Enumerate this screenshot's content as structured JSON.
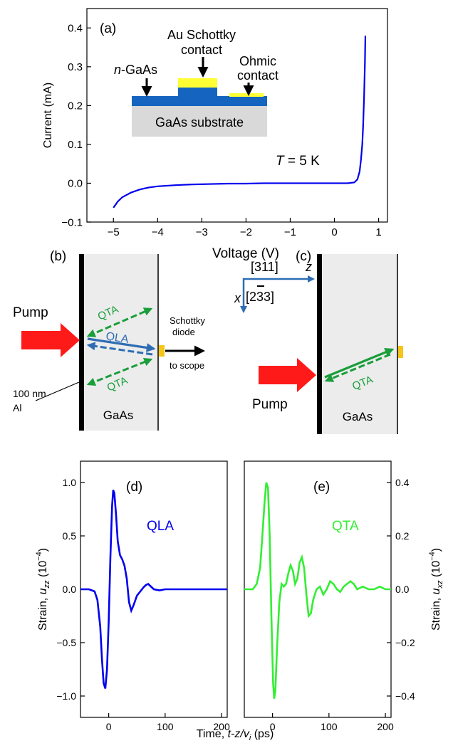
{
  "figure": {
    "panel_a": {
      "label": "(a)",
      "temperature_var": "T",
      "temperature_rest": " = 5 K",
      "inset": {
        "au_label_line1": "Au Schottky",
        "au_label_line2": "contact",
        "ngaas_prefix": "n",
        "ngaas_rest": "-GaAs",
        "ohmic_line1": "Ohmic",
        "ohmic_line2": "contact",
        "substrate": "GaAs substrate"
      }
    },
    "panel_b": {
      "label": "(b)",
      "pump": "Pump",
      "qta": "QTA",
      "qla": "QLA",
      "schottky_line1": "Schottky",
      "schottky_line2": "diode",
      "to_scope": "to scope",
      "al_line1": "100 nm",
      "al_line2": "Al",
      "gaas": "GaAs"
    },
    "panel_c": {
      "label": "(c)",
      "dir_311": "[311]",
      "dir_233": "[233]",
      "axis_z": "z",
      "axis_x": "x",
      "pump": "Pump",
      "qta": "QTA",
      "gaas": "GaAs"
    },
    "panel_d": {
      "label": "(d)",
      "mode": "QLA",
      "ylabel_main": "Strain, ",
      "ylabel_var": "u",
      "ylabel_sub": "zz",
      "ylabel_unit": " (10",
      "ylabel_exp": "−4",
      "ylabel_close": ")"
    },
    "panel_e": {
      "label": "(e)",
      "mode": "QTA",
      "ylabel_main": "Strain, ",
      "ylabel_var": "u",
      "ylabel_sub": "xz",
      "ylabel_unit": " (10",
      "ylabel_exp": "−4",
      "ylabel_close": ")"
    },
    "time_axis": {
      "main": "Time, ",
      "var": "t-z/v",
      "sub": "i",
      "unit": " (ps)"
    }
  },
  "colors": {
    "qla_blue": "#2e6db4",
    "qta_green": "#1a9e3b",
    "curve_blue": "#0000ee",
    "curve_green": "#33ee33",
    "pump_red": "#ff1a1a",
    "gold": "#f5c518",
    "substrate_gray": "#d9d9d9",
    "ngaas_blue": "#1565c0",
    "schottky_yellow": "#ffff33"
  },
  "chart_data": [
    {
      "type": "line",
      "panel": "(a)",
      "xlabel": "Voltage (V)",
      "ylabel": "Current (mA)",
      "xlim": [
        -5.6,
        1.2
      ],
      "ylim": [
        -0.1,
        0.45
      ],
      "xticks": [
        -5,
        -4,
        -3,
        -2,
        -1,
        0,
        1
      ],
      "yticks": [
        -0.1,
        0.0,
        0.1,
        0.2,
        0.3,
        0.4
      ],
      "xtick_labels": [
        "−5",
        "−4",
        "−3",
        "−2",
        "−1",
        "0",
        "1"
      ],
      "ytick_labels": [
        "−0.1",
        "0.0",
        "0.1",
        "0.2",
        "0.3",
        "0.4"
      ],
      "series": [
        {
          "x": [
            -5.0,
            -4.9,
            -4.8,
            -4.6,
            -4.4,
            -4.2,
            -4.0,
            -3.6,
            -3.2,
            -2.8,
            -2.4,
            -2.0,
            -1.6,
            -1.2,
            -0.8,
            -0.4,
            0.0,
            0.3,
            0.45,
            0.52,
            0.57,
            0.6,
            0.63,
            0.65,
            0.67,
            0.69,
            0.7
          ],
          "y": [
            -0.063,
            -0.047,
            -0.036,
            -0.024,
            -0.016,
            -0.011,
            -0.008,
            -0.005,
            -0.003,
            -0.002,
            -0.001,
            -0.001,
            0.0,
            0.0,
            0.0,
            0.0,
            0.0,
            0.0,
            0.002,
            0.01,
            0.03,
            0.06,
            0.1,
            0.15,
            0.22,
            0.31,
            0.38
          ]
        }
      ]
    },
    {
      "type": "line",
      "panel": "(d)",
      "xlim": [
        -50,
        210
      ],
      "ylim": [
        -1.2,
        1.2
      ],
      "xticks": [
        0,
        100,
        200
      ],
      "yticks": [
        -1.0,
        -0.5,
        0.0,
        0.5,
        1.0
      ],
      "xtick_labels": [
        "0",
        "100",
        "200"
      ],
      "ytick_labels": [
        "−1.0",
        "−0.5",
        "0.0",
        "0.5",
        "1.0"
      ],
      "series": [
        {
          "name": "QLA",
          "x": [
            -50,
            -35,
            -25,
            -20,
            -15,
            -12,
            -9,
            -6,
            -3,
            0,
            3,
            6,
            8,
            10,
            13,
            16,
            20,
            24,
            28,
            32,
            36,
            40,
            44,
            50,
            56,
            62,
            66,
            70,
            74,
            80,
            90,
            100,
            120,
            150,
            210
          ],
          "y": [
            0.0,
            0.0,
            -0.02,
            -0.1,
            -0.35,
            -0.65,
            -0.88,
            -0.93,
            -0.75,
            -0.3,
            0.3,
            0.78,
            0.93,
            0.9,
            0.7,
            0.45,
            0.32,
            0.28,
            0.22,
            0.1,
            -0.12,
            -0.2,
            -0.15,
            -0.06,
            -0.02,
            0.02,
            0.04,
            0.05,
            0.03,
            0.0,
            -0.01,
            0.0,
            0.0,
            0.0,
            0.0
          ]
        }
      ]
    },
    {
      "type": "line",
      "panel": "(e)",
      "xlim": [
        -50,
        210
      ],
      "ylim": [
        -0.48,
        0.48
      ],
      "xticks": [
        0,
        100,
        200
      ],
      "yticks": [
        -0.4,
        -0.2,
        0.0,
        0.2,
        0.4
      ],
      "xtick_labels": [
        "0",
        "100",
        "200"
      ],
      "ytick_labels": [
        "−0.4",
        "−0.2",
        "0.0",
        "0.2",
        "0.4"
      ],
      "series": [
        {
          "name": "QTA",
          "x": [
            -50,
            -35,
            -28,
            -22,
            -18,
            -14,
            -11,
            -8,
            -5,
            -2,
            1,
            3,
            5,
            8,
            12,
            16,
            20,
            24,
            28,
            32,
            36,
            40,
            44,
            48,
            52,
            56,
            60,
            64,
            68,
            72,
            78,
            84,
            90,
            96,
            102,
            108,
            114,
            120,
            126,
            132,
            138,
            144,
            150,
            160,
            170,
            180,
            190,
            200,
            210
          ],
          "y": [
            0.0,
            0.0,
            0.02,
            0.08,
            0.2,
            0.33,
            0.4,
            0.38,
            0.2,
            -0.1,
            -0.35,
            -0.41,
            -0.38,
            -0.22,
            -0.05,
            0.02,
            0.01,
            0.02,
            0.06,
            0.09,
            0.07,
            0.02,
            0.04,
            0.1,
            0.12,
            0.08,
            -0.02,
            -0.1,
            -0.09,
            -0.04,
            0.0,
            0.01,
            -0.02,
            0.0,
            0.03,
            0.02,
            0.0,
            -0.01,
            0.01,
            0.02,
            0.03,
            0.02,
            0.0,
            0.01,
            0.0,
            0.0,
            0.01,
            0.0,
            0.0
          ]
        }
      ]
    }
  ]
}
